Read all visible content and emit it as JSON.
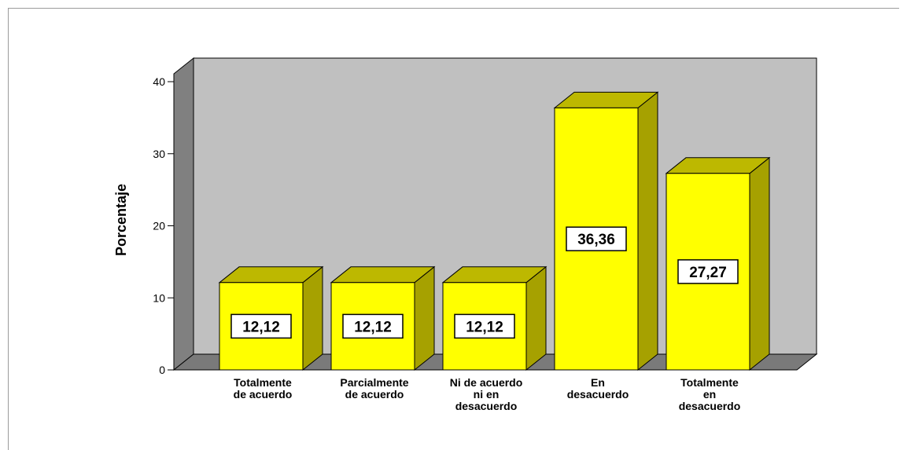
{
  "chart_data": {
    "type": "bar",
    "categories": [
      "Totalmente de acuerdo",
      "Parcialmente de acuerdo",
      "Ni de acuerdo ni en desacuerdo",
      "En desacuerdo",
      "Totalmente en desacuerdo"
    ],
    "category_lines": [
      [
        "Totalmente",
        "de acuerdo"
      ],
      [
        "Parcialmente",
        "de acuerdo"
      ],
      [
        "Ni de acuerdo",
        "ni en",
        "desacuerdo"
      ],
      [
        "En",
        "desacuerdo"
      ],
      [
        "Totalmente",
        "en",
        "desacuerdo"
      ]
    ],
    "values": [
      12.12,
      12.12,
      12.12,
      36.36,
      27.27
    ],
    "value_labels": [
      "12,12",
      "12,12",
      "12,12",
      "36,36",
      "27,27"
    ],
    "ylabel": "Porcentaje",
    "ylim": [
      0,
      40
    ],
    "yticks": [
      0,
      10,
      20,
      30,
      40
    ],
    "grid": false,
    "legend": "none",
    "colors": {
      "bar_front": "#ffff00",
      "bar_side": "#a6a100",
      "bar_top": "#bdb800",
      "back_wall": "#c0c0c0",
      "side_wall": "#808080",
      "floor": "#7a7a7a"
    }
  }
}
